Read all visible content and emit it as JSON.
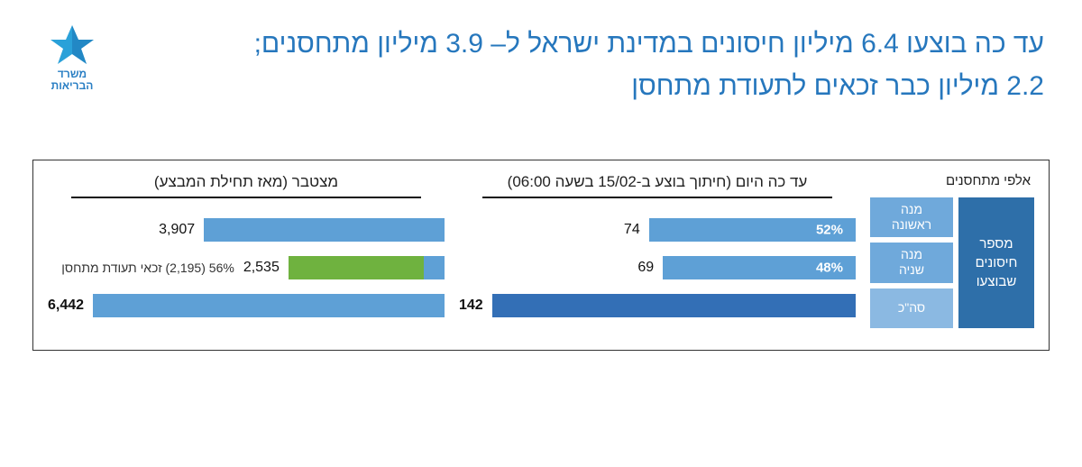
{
  "logo": {
    "text": "משרד\nהבריאות",
    "accent_color": "#2aa1d9",
    "accent_color2": "#1b75b5"
  },
  "title": {
    "line1": "עד כה בוצעו 6.4 מיליון חיסונים במדינת ישראל ל– 3.9 מיליון מתחסנים;",
    "line2": "2.2 מיליון כבר זכאים לתעודת מתחסן",
    "color": "#2677bd",
    "fontsize": 30
  },
  "panel": {
    "legend": {
      "header": "אלפי מתחסנים",
      "big_box": {
        "label": "מספר\nחיסונים\nשבוצעו",
        "bg": "#2e6fa9"
      },
      "rows": [
        {
          "label": "מנה\nראשונה",
          "bg": "#6fa9db"
        },
        {
          "label": "מנה\nשניה",
          "bg": "#6fa9db"
        },
        {
          "label": "סה\"כ",
          "bg": "#8bb9e2"
        }
      ]
    },
    "today_chart": {
      "title": "עד כה היום (חיתוך בוצע ב-15/02 בשעה 06:00)",
      "max": 142,
      "bars": [
        {
          "value": 74,
          "value_label": "74",
          "pct_label": "52%",
          "color": "#5ea0d6",
          "bold": false
        },
        {
          "value": 69,
          "value_label": "69",
          "pct_label": "48%",
          "color": "#5ea0d6",
          "bold": false
        },
        {
          "value": 142,
          "value_label": "142",
          "pct_label": "",
          "color": "#336fb6",
          "bold": true
        }
      ]
    },
    "cumulative_chart": {
      "title": "מצטבר (מאז תחילת המבצע)",
      "max": 6442,
      "bars": [
        {
          "type": "single",
          "value": 3907,
          "value_label": "3,907",
          "color": "#5ea0d6",
          "bold": false
        },
        {
          "type": "stacked_with_annotation",
          "segments": [
            {
              "value": 2195,
              "color": "#6fb23f"
            },
            {
              "value": 340,
              "color": "#5ea0d6"
            }
          ],
          "value_label": "2,535",
          "annotation": "56% (2,195) זכאי תעודת מתחסן",
          "bold": false
        },
        {
          "type": "single",
          "value": 6442,
          "value_label": "6,442",
          "color": "#5ea0d6",
          "bold": true
        }
      ]
    }
  }
}
